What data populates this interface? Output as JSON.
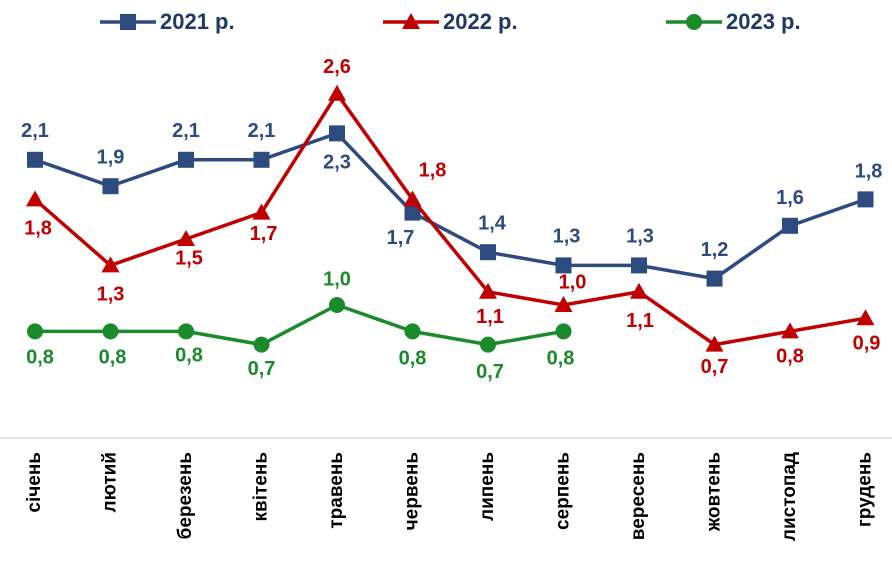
{
  "chart_data": {
    "type": "line",
    "categories": [
      "січень",
      "лютий",
      "березень",
      "квітень",
      "травень",
      "червень",
      "липень",
      "серпень",
      "вересень",
      "жовтень",
      "листопад",
      "грудень"
    ],
    "series": [
      {
        "name": "2021 р.",
        "color": "#2e4b7f",
        "marker": "square",
        "values": [
          2.1,
          1.9,
          2.1,
          2.1,
          2.3,
          1.7,
          1.4,
          1.3,
          1.3,
          1.2,
          1.6,
          1.8
        ],
        "value_labels": [
          "2,1",
          "1,9",
          "2,1",
          "2,1",
          "2,3",
          "1,7",
          "1,4",
          "1,3",
          "1,3",
          "1,2",
          "1,6",
          "1,8"
        ]
      },
      {
        "name": "2022 р.",
        "color": "#c00000",
        "marker": "triangle",
        "values": [
          1.8,
          1.3,
          1.5,
          1.7,
          2.6,
          1.8,
          1.1,
          1.0,
          1.1,
          0.7,
          0.8,
          0.9
        ],
        "value_labels": [
          "1,8",
          "1,3",
          "1,5",
          "1,7",
          "2,6",
          "1,8",
          "1,1",
          "1,0",
          "1,1",
          "0,7",
          "0,8",
          "0,9"
        ]
      },
      {
        "name": "2023 р.",
        "color": "#1a8a2a",
        "marker": "circle",
        "values": [
          0.8,
          0.8,
          0.8,
          0.7,
          1.0,
          0.8,
          0.7,
          0.8,
          null,
          null,
          null,
          null
        ],
        "value_labels": [
          "0,8",
          "0,8",
          "0,8",
          "0,7",
          "1,0",
          "0,8",
          "0,7",
          "0,8",
          null,
          null,
          null,
          null
        ]
      }
    ],
    "ylim": [
      0,
      3
    ],
    "legend": "top"
  }
}
